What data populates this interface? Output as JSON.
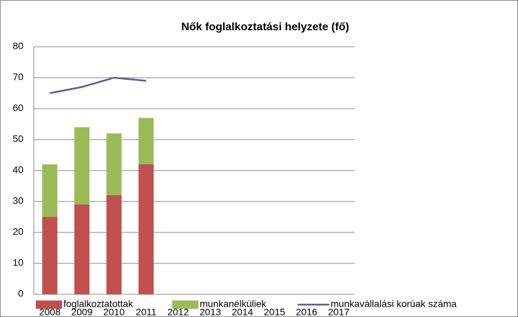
{
  "chart_data": {
    "type": "bar",
    "stacked": true,
    "title": "Nők foglalkoztatási helyzete (fő)",
    "categories": [
      "2008",
      "2009",
      "2010",
      "2011",
      "2012",
      "2013",
      "2014",
      "2015",
      "2016",
      "2017"
    ],
    "series": [
      {
        "name": "foglalkoztatottak",
        "type": "bar",
        "color": "#c0504d",
        "values": [
          25,
          29,
          32,
          42,
          null,
          null,
          null,
          null,
          null,
          null
        ]
      },
      {
        "name": "munkanélküliek",
        "type": "bar",
        "color": "#9bbb59",
        "values": [
          17,
          25,
          20,
          15,
          null,
          null,
          null,
          null,
          null,
          null
        ]
      },
      {
        "name": "munkavállalási korúak száma",
        "type": "line",
        "color": "#5b5b9b",
        "values": [
          65,
          67,
          70,
          69,
          null,
          null,
          null,
          null,
          null,
          null
        ]
      }
    ],
    "ylim": [
      0,
      80
    ],
    "yticks": [
      0,
      10,
      20,
      30,
      40,
      50,
      60,
      70,
      80
    ],
    "grid": true,
    "legend": "bottom"
  }
}
